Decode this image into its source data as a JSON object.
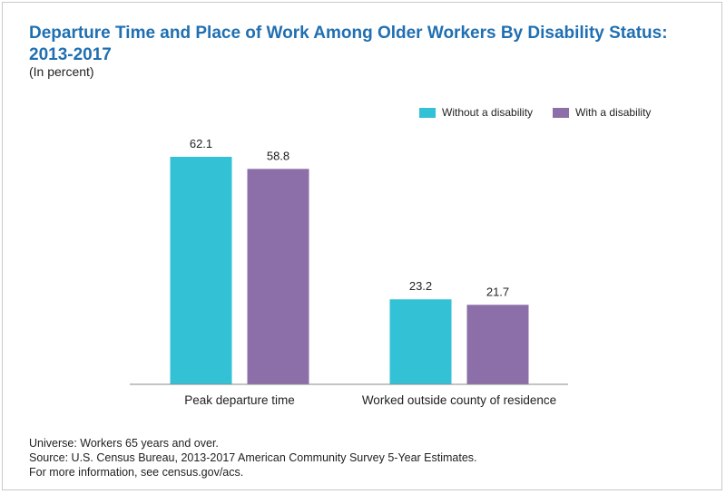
{
  "title": "Departure Time and Place of Work Among Older Workers By Disability Status: 2013-2017",
  "subtitle": "(In percent)",
  "colors": {
    "without": "#33c1d6",
    "with": "#8c6ea8",
    "title": "#1f6fb2"
  },
  "chart_data": {
    "type": "bar",
    "title": "Departure Time and Place of Work Among Older Workers By Disability Status: 2013-2017",
    "subtitle": "(In percent)",
    "categories": [
      "Peak departure time",
      "Worked outside county of residence"
    ],
    "series": [
      {
        "name": "Without a disability",
        "values": [
          62.1,
          23.2
        ]
      },
      {
        "name": "With a disability",
        "values": [
          58.8,
          21.7
        ]
      }
    ],
    "xlabel": "",
    "ylabel": "",
    "ylim": [
      0,
      70
    ],
    "grid": false,
    "legend": "top-right"
  },
  "footer": {
    "universe": "Universe: Workers 65 years and over.",
    "source": "Source: U.S. Census Bureau, 2013-2017 American Community Survey 5-Year Estimates.",
    "info": "For more information, see census.gov/acs."
  }
}
